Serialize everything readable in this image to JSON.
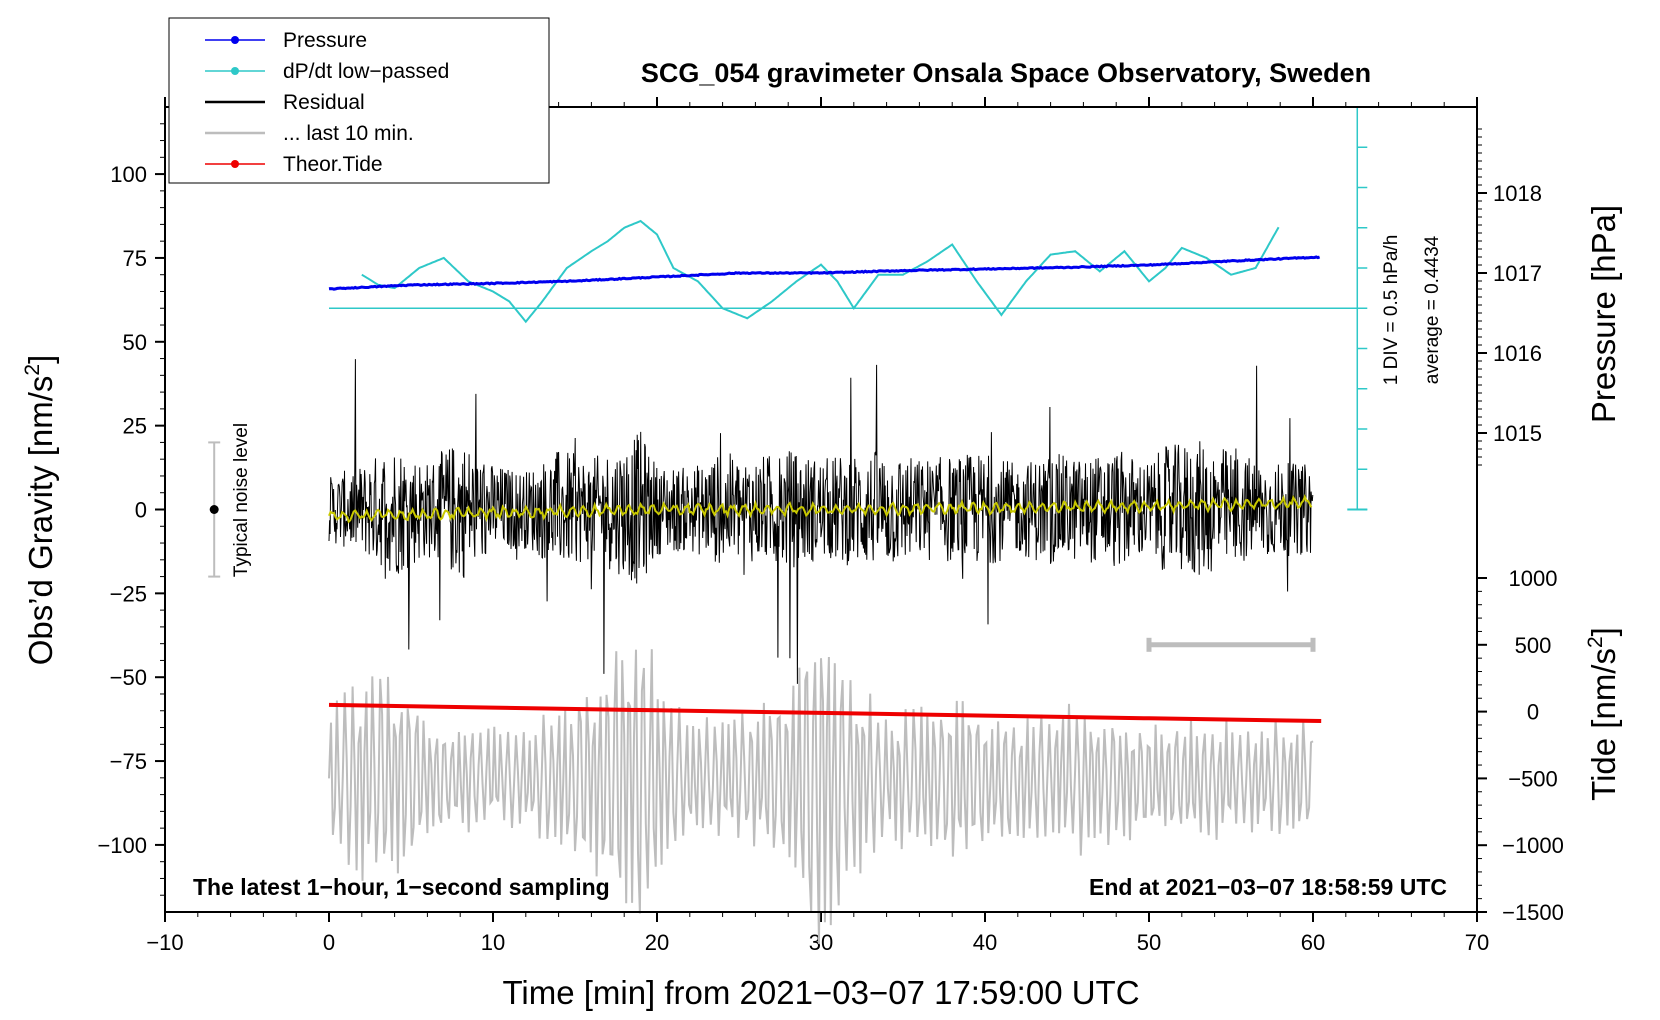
{
  "chart_data": {
    "type": "line",
    "title": "SCG_054 gravimeter Onsala Space Observatory, Sweden",
    "xlabel": "Time [min] from 2021−03−07 17:59:00 UTC",
    "ylabel_left_main": "Obs’d Gravity [nm/s",
    "ylabel_left_sup": "2",
    "ylabel_left_end": "]",
    "ylabel_right_pressure": "Pressure [hPa]",
    "ylabel_right_tide_main": "Tide [nm/s",
    "ylabel_right_tide_sup": "2",
    "ylabel_right_tide_end": "]",
    "xlim": [
      -10,
      70
    ],
    "ylim": [
      -120,
      120
    ],
    "x_ticks": [
      "−10",
      "0",
      "10",
      "20",
      "30",
      "40",
      "50",
      "60",
      "70"
    ],
    "x_tick_values": [
      -10,
      0,
      10,
      20,
      30,
      40,
      50,
      60,
      70
    ],
    "y_ticks": [
      "100",
      "75",
      "50",
      "25",
      "0",
      "−25",
      "−50",
      "−75",
      "−100"
    ],
    "y_tick_values": [
      100,
      75,
      50,
      25,
      0,
      -25,
      -50,
      -75,
      -100
    ],
    "pressure_ticks": [
      "1018",
      "1017",
      "1016",
      "1015"
    ],
    "pressure_tick_values": [
      1018,
      1017,
      1016,
      1015
    ],
    "pressure_range": [
      1014.0,
      1019.0
    ],
    "tide_ticks": [
      "1000",
      "500",
      "0",
      "−500",
      "−1000",
      "−1500"
    ],
    "tide_tick_values": [
      1000,
      500,
      0,
      -500,
      -1000,
      -1500
    ],
    "tide_range": [
      -1500,
      1000
    ],
    "legend": [
      {
        "label": "Pressure",
        "color": "#0000ee",
        "marker": true
      },
      {
        "label": "dP/dt low−passed",
        "color": "#2ec8c8",
        "marker": true
      },
      {
        "label": "Residual",
        "color": "#000000",
        "marker": false
      },
      {
        "label": "... last 10 min.",
        "color": "#bdbdbd",
        "marker": false
      },
      {
        "label": "Theor.Tide",
        "color": "#ee0000",
        "marker": true
      }
    ],
    "series": {
      "pressure_hpa": {
        "x": [
          0,
          5,
          10,
          15,
          20,
          25,
          30,
          35,
          40,
          45,
          50,
          55,
          60.5
        ],
        "values": [
          1016.8,
          1016.85,
          1016.87,
          1016.9,
          1016.95,
          1017.0,
          1017.0,
          1017.03,
          1017.05,
          1017.07,
          1017.1,
          1017.15,
          1017.2
        ]
      },
      "dpdt_gravity_units": {
        "x": [
          2,
          3,
          4,
          5.5,
          7,
          8.5,
          10,
          11,
          12,
          13,
          14.5,
          16,
          17,
          18,
          19,
          20,
          21,
          22.5,
          24,
          25.5,
          27,
          28.5,
          30,
          31,
          32,
          33.5,
          35,
          36.5,
          38,
          39.5,
          41,
          42.5,
          44,
          45.5,
          47,
          48.5,
          50,
          51,
          52,
          53.5,
          55,
          56.5,
          58
        ],
        "values": [
          70,
          67,
          66,
          72,
          75,
          68,
          65,
          62,
          56,
          62,
          72,
          77,
          80,
          84,
          86,
          82,
          72,
          68,
          60,
          57,
          62,
          68,
          73,
          68,
          60,
          70,
          70,
          74,
          79,
          68,
          58,
          68,
          76,
          77,
          71,
          77,
          68,
          72,
          78,
          75,
          70,
          72,
          85
        ]
      },
      "residual_envelope": {
        "x": [
          0,
          2,
          4,
          6,
          8,
          10,
          12,
          14,
          16,
          18,
          19,
          20,
          22,
          24,
          26,
          28,
          30,
          32,
          34,
          36,
          38,
          40,
          42,
          44,
          46,
          48,
          50,
          51,
          53,
          55,
          57,
          60
        ],
        "amplitude": [
          22,
          30,
          45,
          32,
          48,
          30,
          26,
          40,
          34,
          45,
          52,
          30,
          28,
          38,
          35,
          40,
          34,
          38,
          40,
          34,
          36,
          38,
          30,
          38,
          34,
          40,
          32,
          42,
          46,
          40,
          32,
          30
        ]
      },
      "last10min_tide_units": {
        "x": [
          0,
          2,
          4,
          6,
          8,
          10,
          12,
          14,
          16,
          18,
          19,
          20,
          22,
          24,
          26,
          28,
          30,
          32,
          34,
          36,
          38,
          40,
          42,
          44,
          46,
          48,
          50,
          52,
          54,
          56,
          58,
          60
        ],
        "amplitude": [
          600,
          850,
          900,
          500,
          450,
          400,
          400,
          600,
          800,
          1200,
          1500,
          900,
          500,
          500,
          550,
          700,
          1500,
          900,
          500,
          600,
          700,
          550,
          500,
          600,
          650,
          500,
          450,
          450,
          500,
          400,
          500,
          500
        ]
      },
      "theoretical_tide_nms2": {
        "x": [
          0,
          10,
          20,
          30,
          40,
          50,
          60.5
        ],
        "values": [
          50,
          30,
          10,
          -10,
          -30,
          -50,
          -70
        ]
      },
      "residual_lowpass": {
        "x": [
          0,
          10,
          20,
          30,
          40,
          50,
          60
        ],
        "values": [
          -2,
          -1,
          0,
          0,
          0.5,
          1,
          2
        ]
      }
    },
    "noise_level_label": "Typical noise level",
    "noise_level_range": [
      -20,
      20
    ],
    "noise_level_x": -7,
    "last10_bar_x": [
      50,
      60
    ],
    "last10_bar_tide": 500,
    "scale_note_1": "1 DIV = 0.5 hPa/h",
    "scale_note_2": "average = 0.4434",
    "dpdt_baseline_gravity": 60,
    "bottom_left_note": "The latest 1−hour, 1−second sampling",
    "bottom_right_note": "End at 2021−03−07 18:58:59 UTC"
  }
}
